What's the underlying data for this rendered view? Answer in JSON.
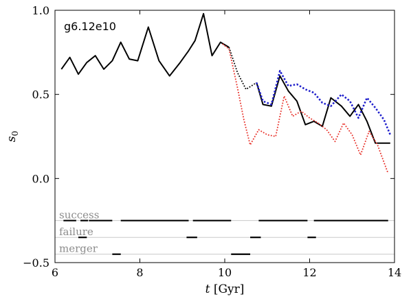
{
  "chart_data": {
    "type": "line",
    "title": "",
    "annotation": "g6.12e10",
    "xlabel": "t [Gyr]",
    "ylabel": "s0",
    "xlim": [
      6,
      14
    ],
    "ylim": [
      -0.5,
      1.0
    ],
    "xticks": [
      "6",
      "8",
      "10",
      "12",
      "14"
    ],
    "yticks": [
      "1.0",
      "0.5",
      "0.0",
      "−0.5"
    ],
    "grid": false,
    "series": [
      {
        "color": "#000000",
        "style": "solid",
        "x": [
          6.15,
          6.35,
          6.55,
          6.75,
          6.95,
          7.15,
          7.35,
          7.55,
          7.75,
          7.95,
          8.2,
          8.45,
          8.7,
          8.95,
          9.15,
          9.3,
          9.5,
          9.7,
          9.9,
          10.1
        ],
        "y": [
          0.65,
          0.72,
          0.62,
          0.69,
          0.73,
          0.65,
          0.7,
          0.81,
          0.71,
          0.7,
          0.9,
          0.7,
          0.61,
          0.69,
          0.76,
          0.82,
          0.98,
          0.73,
          0.81,
          0.78
        ]
      },
      {
        "color": "#000000",
        "style": "dotted",
        "x": [
          10.1,
          10.3,
          10.5,
          10.75
        ],
        "y": [
          0.78,
          0.63,
          0.53,
          0.57
        ]
      },
      {
        "color": "#000000",
        "style": "solid",
        "x": [
          10.75,
          10.9,
          11.1,
          11.3,
          11.5,
          11.7,
          11.9,
          12.1,
          12.3,
          12.5,
          12.75,
          12.95,
          13.15,
          13.35,
          13.55,
          13.75,
          13.9
        ],
        "y": [
          0.57,
          0.44,
          0.43,
          0.61,
          0.52,
          0.46,
          0.32,
          0.34,
          0.31,
          0.48,
          0.43,
          0.37,
          0.44,
          0.34,
          0.21,
          0.21,
          0.21
        ]
      },
      {
        "color": "#1f1fcc",
        "style": "dotted",
        "x": [
          10.75,
          10.9,
          11.1,
          11.3,
          11.5,
          11.7,
          11.9,
          12.1,
          12.3,
          12.5,
          12.75,
          12.95,
          13.15,
          13.35,
          13.55,
          13.75,
          13.9
        ],
        "y": [
          0.57,
          0.46,
          0.44,
          0.64,
          0.55,
          0.56,
          0.53,
          0.51,
          0.45,
          0.43,
          0.5,
          0.46,
          0.36,
          0.48,
          0.42,
          0.35,
          0.26
        ]
      },
      {
        "color": "#e8312a",
        "style": "dotted",
        "x": [
          9.95,
          10.1,
          10.3,
          10.45,
          10.6,
          10.8,
          11.0,
          11.2,
          11.4,
          11.6,
          11.8,
          12.0,
          12.2,
          12.4,
          12.6,
          12.8,
          13.0,
          13.2,
          13.4,
          13.6,
          13.85
        ],
        "y": [
          0.8,
          0.77,
          0.54,
          0.35,
          0.2,
          0.29,
          0.26,
          0.25,
          0.49,
          0.37,
          0.4,
          0.36,
          0.33,
          0.29,
          0.22,
          0.33,
          0.26,
          0.14,
          0.28,
          0.2,
          0.03
        ]
      }
    ],
    "bands": [
      {
        "label": "success",
        "y": -0.25,
        "segments": [
          [
            6.2,
            6.5
          ],
          [
            6.6,
            6.78
          ],
          [
            6.8,
            7.35
          ],
          [
            7.55,
            9.15
          ],
          [
            9.25,
            10.15
          ],
          [
            10.8,
            11.95
          ],
          [
            12.1,
            13.85
          ]
        ]
      },
      {
        "label": "failure",
        "y": -0.35,
        "segments": [
          [
            6.55,
            6.75
          ],
          [
            9.1,
            9.35
          ],
          [
            10.6,
            10.85
          ],
          [
            11.95,
            12.15
          ]
        ]
      },
      {
        "label": "merger",
        "y": -0.45,
        "segments": [
          [
            7.35,
            7.55
          ],
          [
            10.15,
            10.6
          ]
        ]
      }
    ]
  }
}
